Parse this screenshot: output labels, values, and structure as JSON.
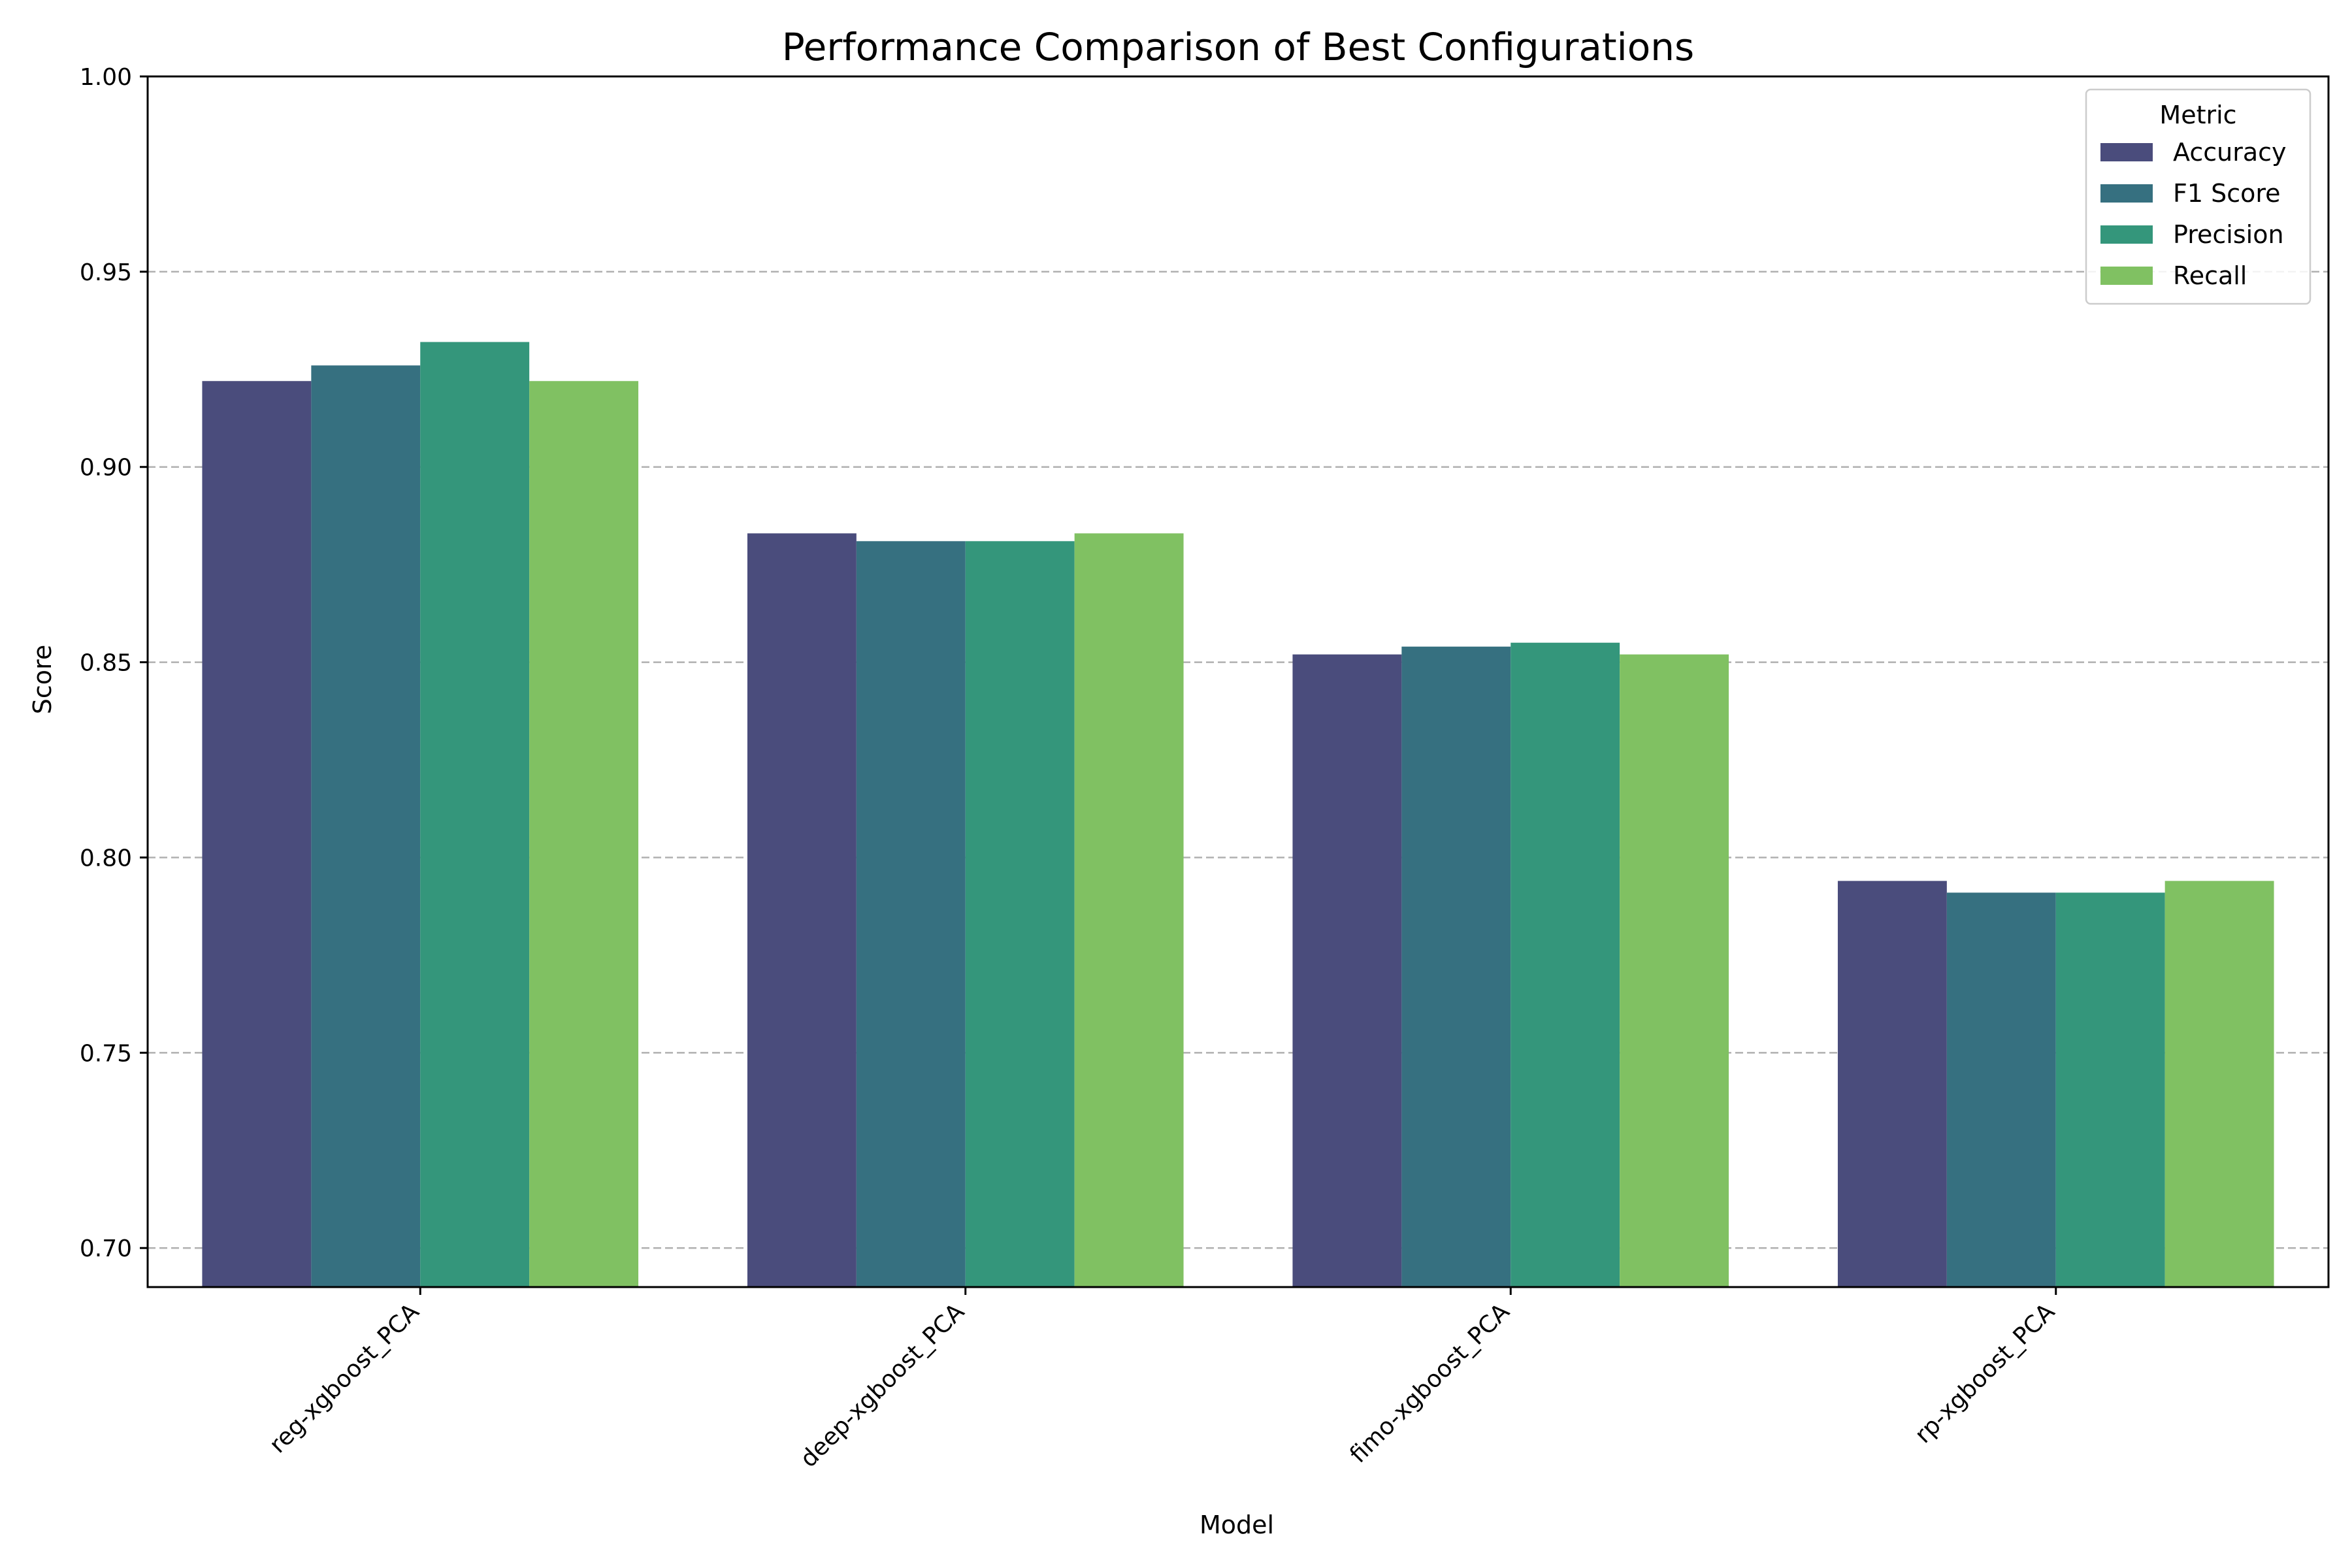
{
  "chart_data": {
    "type": "bar",
    "title": "Performance Comparison of Best Configurations",
    "xlabel": "Model",
    "ylabel": "Score",
    "ylim": [
      0.69,
      1.0
    ],
    "yticks": [
      "0.70",
      "0.75",
      "0.80",
      "0.85",
      "0.90",
      "0.95",
      "1.00"
    ],
    "ytick_values": [
      0.7,
      0.75,
      0.8,
      0.85,
      0.9,
      0.95,
      1.0
    ],
    "categories": [
      "reg-xgboost_PCA",
      "deep-xgboost_PCA",
      "fimo-xgboost_PCA",
      "rp-xgboost_PCA"
    ],
    "grid": "y-dashed",
    "legend": {
      "title": "Metric",
      "placement": "top-right"
    },
    "series": [
      {
        "name": "Accuracy",
        "color": "#4a4c7c",
        "values": [
          0.922,
          0.883,
          0.852,
          0.794
        ]
      },
      {
        "name": "F1 Score",
        "color": "#367080",
        "values": [
          0.926,
          0.881,
          0.854,
          0.791
        ]
      },
      {
        "name": "Precision",
        "color": "#34967b",
        "values": [
          0.932,
          0.881,
          0.855,
          0.791
        ]
      },
      {
        "name": "Recall",
        "color": "#80c162",
        "values": [
          0.922,
          0.883,
          0.852,
          0.794
        ]
      }
    ]
  }
}
